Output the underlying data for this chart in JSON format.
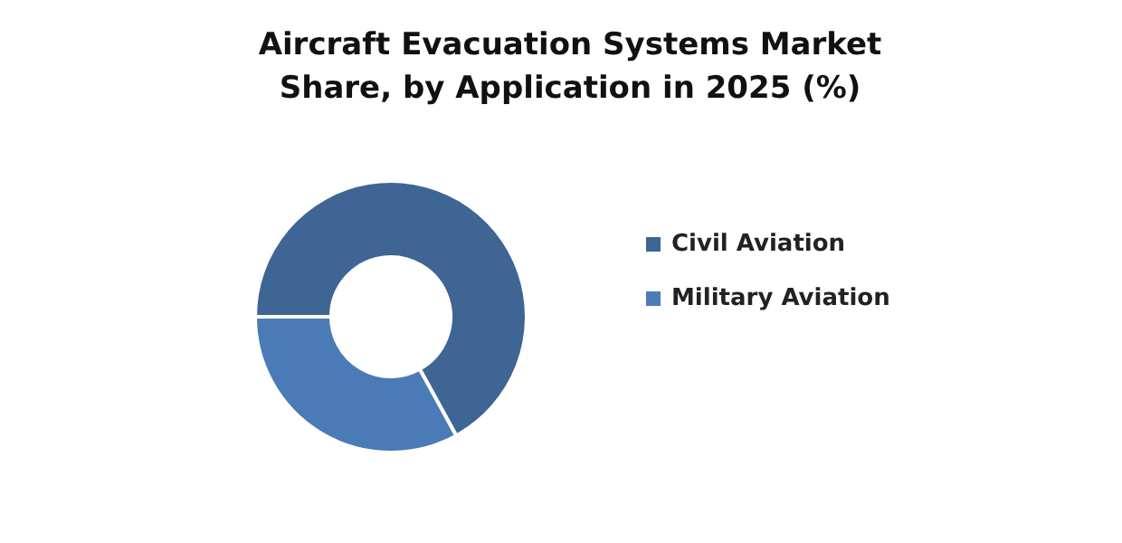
{
  "chart_data": {
    "type": "donut",
    "title": "Aircraft Evacuation Systems Market\nShare, by Application in 2025 (%)",
    "categories": [
      "Civil Aviation",
      "Military Aviation"
    ],
    "values": [
      67,
      33
    ],
    "colors": [
      "#3e6594",
      "#4b7bb6"
    ],
    "legend": "right"
  }
}
